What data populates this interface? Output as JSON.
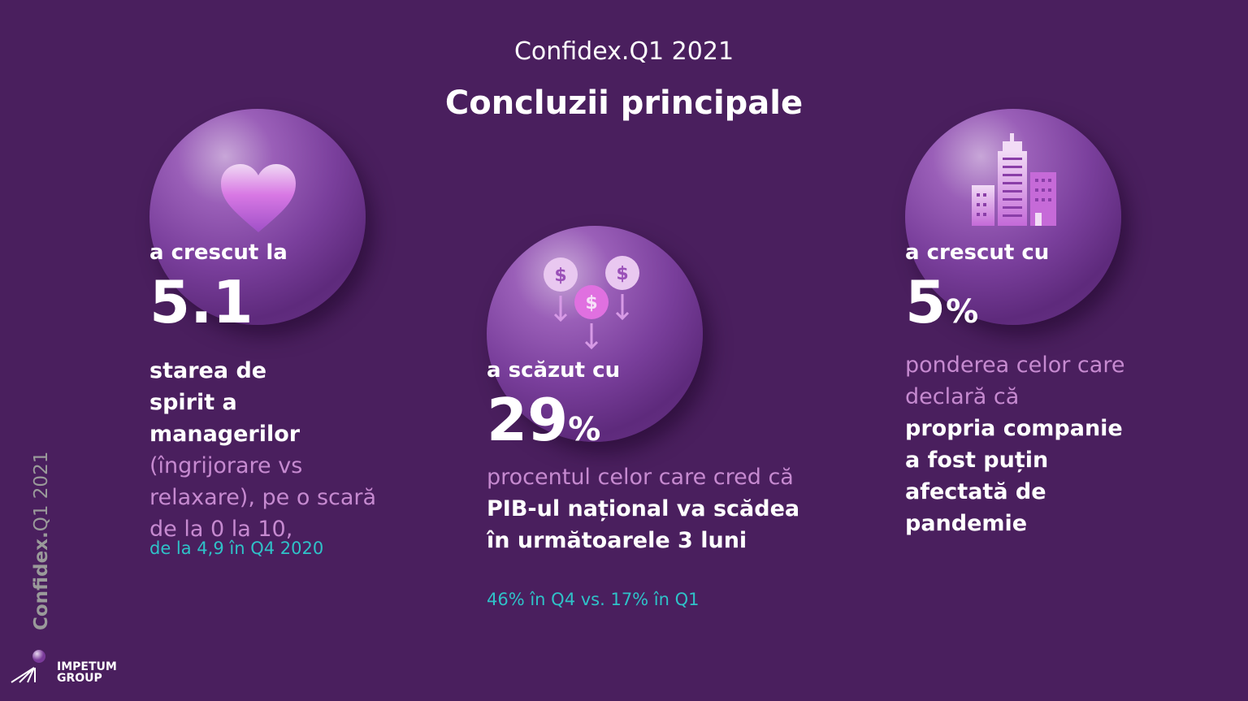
{
  "header": {
    "subtitle": "Confidex.Q1 2021",
    "title": "Concluzii principale"
  },
  "cards": [
    {
      "icon": "heart-icon",
      "lead": "a crescut la",
      "value": "5.1",
      "unit": "",
      "white_text": "starea de spirit a managerilor",
      "pink_text": "(îngrijorare vs relaxare), pe o scară de la 0 la 10,",
      "note": "de la 4,9 în Q4 2020"
    },
    {
      "icon": "dollar-coins-down-icon",
      "lead": "a scăzut cu",
      "value": "29",
      "unit": "%",
      "pink_text": "procentul celor care cred că",
      "white_text": "PIB-ul național va scădea în următoarele 3 luni",
      "note": "46% în Q4 vs. 17% în Q1"
    },
    {
      "icon": "buildings-icon",
      "lead": "a crescut cu",
      "value": "5",
      "unit": "%",
      "pink_text": "ponderea celor care declară că",
      "white_text": "propria companie a fost puțin afectată de pandemie"
    }
  ],
  "side_label": {
    "bold": "Confidex.",
    "rest": "Q1 2021"
  },
  "logo": {
    "line1": "IMPETUM",
    "line2": "GROUP"
  },
  "colors": {
    "background": "#4a1f5e",
    "pink": "#c68ad0",
    "teal": "#2fc2c8"
  }
}
